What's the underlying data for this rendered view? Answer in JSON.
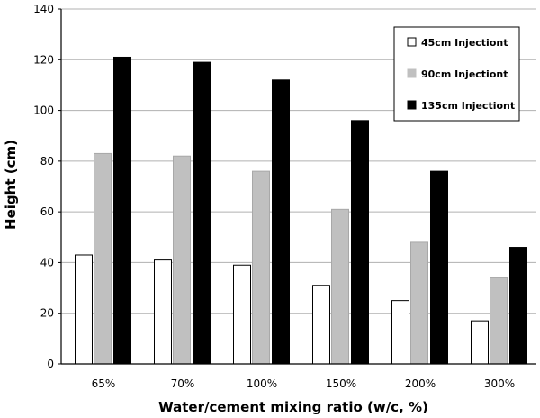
{
  "chart_data": {
    "type": "bar",
    "title": "",
    "xlabel": "Water/cement mixing ratio (w/c, %)",
    "ylabel": "Height (cm)",
    "ylim": [
      0,
      140
    ],
    "yticks": [
      0,
      20,
      40,
      60,
      80,
      100,
      120,
      140
    ],
    "grid": true,
    "legend_position": "top-right",
    "categories": [
      "65%",
      "70%",
      "100%",
      "150%",
      "200%",
      "300%"
    ],
    "series": [
      {
        "name": "45cm Injectiont",
        "color": "#ffffff",
        "values": [
          43,
          41,
          39,
          31,
          25,
          17
        ]
      },
      {
        "name": "90cm Injectiont",
        "color": "#c0c0c0",
        "values": [
          83,
          82,
          76,
          61,
          48,
          34
        ]
      },
      {
        "name": "135cm Injectiont",
        "color": "#000000",
        "values": [
          121,
          119,
          112,
          96,
          76,
          46
        ]
      }
    ]
  }
}
